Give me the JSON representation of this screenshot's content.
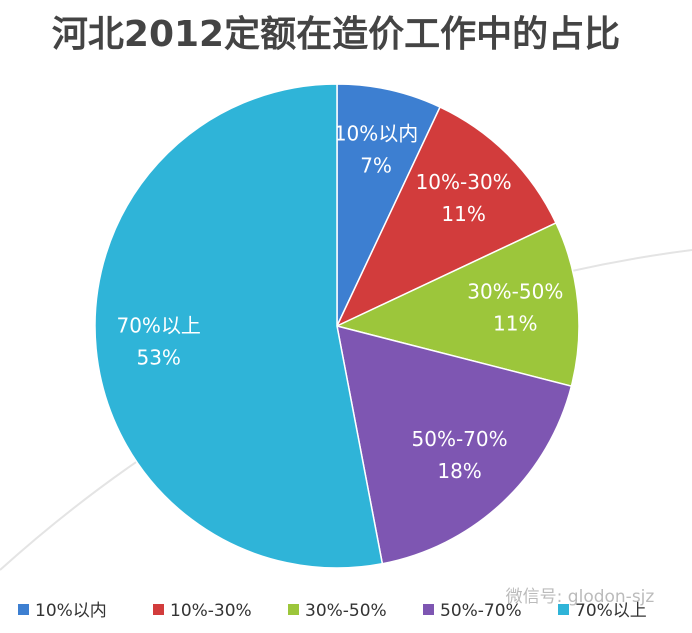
{
  "chart_data": {
    "type": "pie",
    "title": "河北2012定额在造价工作中的占比",
    "categories": [
      "10%以内",
      "10%-30%",
      "30%-50%",
      "50%-70%",
      "70%以上"
    ],
    "values": [
      7,
      11,
      11,
      18,
      53
    ],
    "value_labels": [
      "7%",
      "11%",
      "11%",
      "18%",
      "53%"
    ],
    "colors": [
      "#3d7fd1",
      "#d23c3c",
      "#9cc63b",
      "#7e56b2",
      "#2fb4d8"
    ],
    "legend": "bottom",
    "watermark": "微信号: glodon-sjz"
  }
}
